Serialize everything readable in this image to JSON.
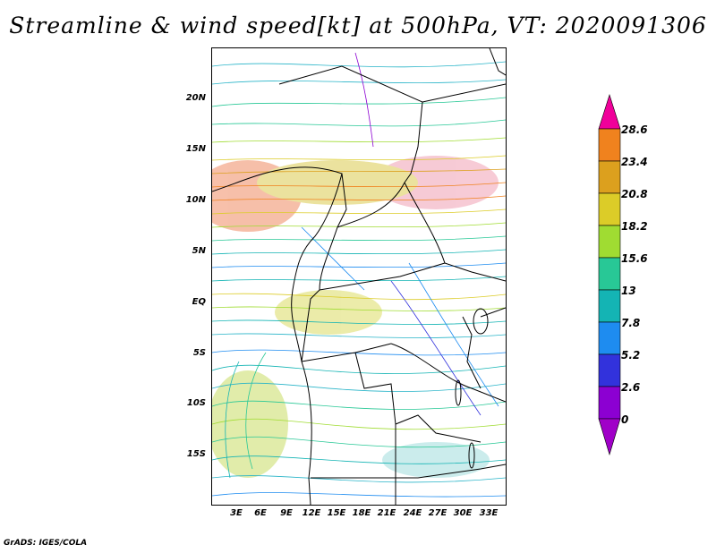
{
  "title": "Streamline & wind speed[kt] at 500hPa, VT: 2020091306",
  "footer": "GrADS: IGES/COLA",
  "map": {
    "lat_labels": [
      "20N",
      "15N",
      "10N",
      "5N",
      "EQ",
      "5S",
      "10S",
      "15S"
    ],
    "lon_labels": [
      "3E",
      "6E",
      "9E",
      "12E",
      "15E",
      "18E",
      "21E",
      "24E",
      "27E",
      "30E",
      "33E"
    ]
  },
  "colorbar": {
    "labels": [
      "28.6",
      "23.4",
      "20.8",
      "18.2",
      "15.6",
      "13",
      "7.8",
      "5.2",
      "2.6",
      "0"
    ],
    "colors": [
      "#f0009a",
      "#f0821e",
      "#dca01e",
      "#dccc28",
      "#a0dc32",
      "#28c896",
      "#14b4b4",
      "#1e8cf0",
      "#3232dc",
      "#8c00d2",
      "#a000c8"
    ]
  }
}
